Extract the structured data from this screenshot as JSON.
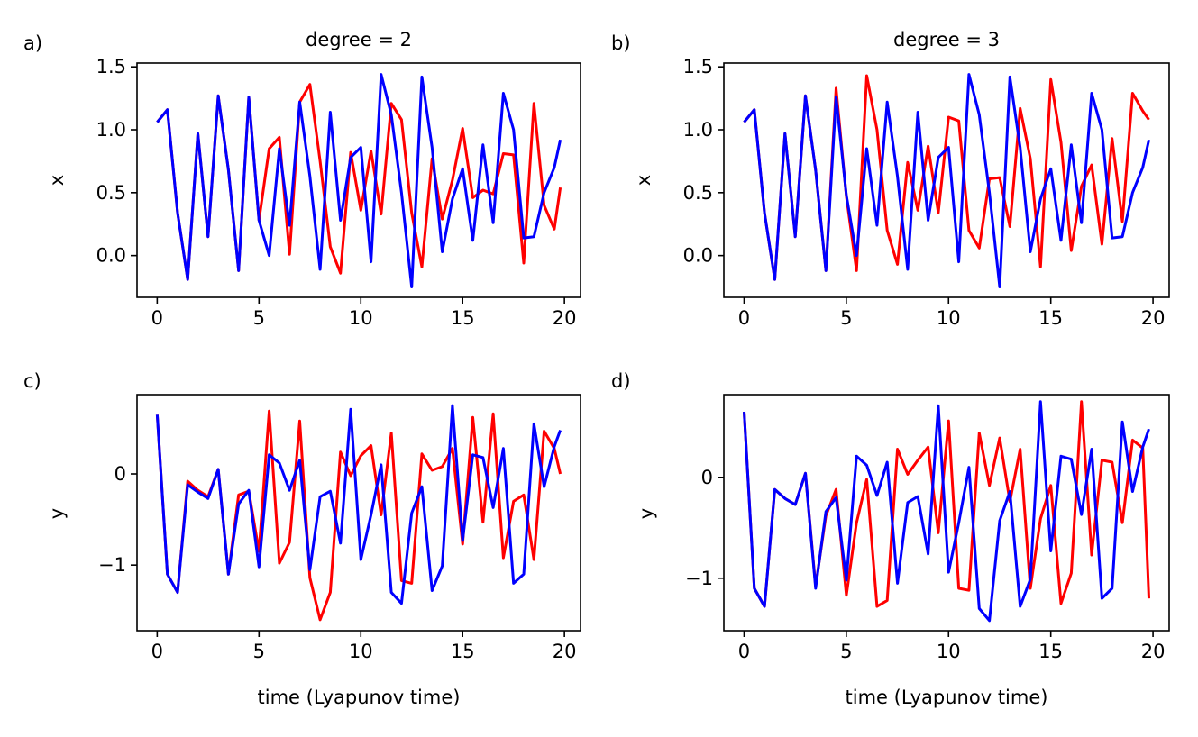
{
  "figure": {
    "background": "#ffffff"
  },
  "colors": {
    "series_red": "#ff0000",
    "series_blue": "#0000ff",
    "axis": "#000000"
  },
  "chart_data": [
    {
      "id": "a",
      "panel_label": "a)",
      "type": "line",
      "title": "degree = 2",
      "xlabel": "",
      "ylabel": "x",
      "xlim": [
        -0.99,
        20.79
      ],
      "ylim": [
        -0.332,
        1.53
      ],
      "xticks": [
        0,
        5,
        10,
        15,
        20
      ],
      "yticks": [
        0.0,
        0.5,
        1.0,
        1.5
      ],
      "ytick_labels": [
        "0.0",
        "0.5",
        "1.0",
        "1.5"
      ],
      "x": [
        0.0,
        0.5,
        1.0,
        1.5,
        2.0,
        2.5,
        3.0,
        3.5,
        4.0,
        4.5,
        5.0,
        5.5,
        6.0,
        6.5,
        7.0,
        7.5,
        8.0,
        8.5,
        9.0,
        9.5,
        10.0,
        10.5,
        11.0,
        11.5,
        12.0,
        12.5,
        13.0,
        13.5,
        14.0,
        14.5,
        15.0,
        15.5,
        16.0,
        16.5,
        17.0,
        17.5,
        18.0,
        18.5,
        19.0,
        19.5,
        19.8
      ],
      "series": [
        {
          "name": "red",
          "color": "#ff0000",
          "values": [
            1.06,
            1.16,
            0.34,
            -0.19,
            0.97,
            0.15,
            1.27,
            0.68,
            -0.12,
            1.26,
            0.28,
            0.85,
            0.94,
            0.01,
            1.22,
            1.36,
            0.75,
            0.07,
            -0.14,
            0.82,
            0.36,
            0.83,
            0.33,
            1.21,
            1.08,
            0.34,
            -0.09,
            0.77,
            0.29,
            0.6,
            1.01,
            0.46,
            0.52,
            0.49,
            0.81,
            0.8,
            -0.06,
            1.21,
            0.4,
            0.21,
            0.54
          ]
        },
        {
          "name": "blue",
          "color": "#0000ff",
          "values": [
            1.06,
            1.16,
            0.34,
            -0.19,
            0.97,
            0.15,
            1.27,
            0.68,
            -0.12,
            1.26,
            0.28,
            0.0,
            0.85,
            0.24,
            1.22,
            0.63,
            -0.11,
            1.14,
            0.28,
            0.78,
            0.86,
            -0.05,
            1.44,
            1.12,
            0.5,
            -0.25,
            1.42,
            0.86,
            0.03,
            0.45,
            0.69,
            0.12,
            0.88,
            0.26,
            1.29,
            1.0,
            0.14,
            0.15,
            0.5,
            0.7,
            0.92
          ]
        }
      ]
    },
    {
      "id": "b",
      "panel_label": "b)",
      "type": "line",
      "title": "degree = 3",
      "xlabel": "",
      "ylabel": "x",
      "xlim": [
        -0.99,
        20.79
      ],
      "ylim": [
        -0.332,
        1.53
      ],
      "xticks": [
        0,
        5,
        10,
        15,
        20
      ],
      "yticks": [
        0.0,
        0.5,
        1.0,
        1.5
      ],
      "ytick_labels": [
        "0.0",
        "0.5",
        "1.0",
        "1.5"
      ],
      "x": [
        0.0,
        0.5,
        1.0,
        1.5,
        2.0,
        2.5,
        3.0,
        3.5,
        4.0,
        4.5,
        5.0,
        5.5,
        6.0,
        6.5,
        7.0,
        7.5,
        8.0,
        8.5,
        9.0,
        9.5,
        10.0,
        10.5,
        11.0,
        11.5,
        12.0,
        12.5,
        13.0,
        13.5,
        14.0,
        14.5,
        15.0,
        15.5,
        16.0,
        16.5,
        17.0,
        17.5,
        18.0,
        18.5,
        19.0,
        19.5,
        19.8
      ],
      "series": [
        {
          "name": "red",
          "color": "#ff0000",
          "values": [
            1.06,
            1.16,
            0.34,
            -0.19,
            0.97,
            0.15,
            1.27,
            0.68,
            -0.12,
            1.33,
            0.47,
            -0.12,
            1.43,
            1.0,
            0.2,
            -0.07,
            0.74,
            0.36,
            0.87,
            0.34,
            1.1,
            1.07,
            0.2,
            0.06,
            0.61,
            0.62,
            0.23,
            1.17,
            0.77,
            -0.09,
            1.4,
            0.9,
            0.04,
            0.55,
            0.72,
            0.09,
            0.93,
            0.27,
            1.29,
            1.15,
            1.08
          ]
        },
        {
          "name": "blue",
          "color": "#0000ff",
          "values": [
            1.06,
            1.16,
            0.34,
            -0.19,
            0.97,
            0.15,
            1.27,
            0.68,
            -0.12,
            1.26,
            0.48,
            0.0,
            0.85,
            0.24,
            1.22,
            0.63,
            -0.11,
            1.14,
            0.28,
            0.78,
            0.86,
            -0.05,
            1.44,
            1.12,
            0.5,
            -0.25,
            1.42,
            0.86,
            0.03,
            0.45,
            0.69,
            0.12,
            0.88,
            0.26,
            1.29,
            1.0,
            0.14,
            0.15,
            0.5,
            0.7,
            0.92
          ]
        }
      ]
    },
    {
      "id": "c",
      "panel_label": "c)",
      "type": "line",
      "title": "",
      "xlabel": "time (Lyapunov time)",
      "ylabel": "y",
      "xlim": [
        -0.99,
        20.79
      ],
      "ylim": [
        -1.72,
        0.87
      ],
      "xticks": [
        0,
        5,
        10,
        15,
        20
      ],
      "yticks": [
        -1,
        0
      ],
      "ytick_labels": [
        "−1",
        "0"
      ],
      "x": [
        0.0,
        0.5,
        1.0,
        1.5,
        2.0,
        2.5,
        3.0,
        3.5,
        4.0,
        4.5,
        5.0,
        5.5,
        6.0,
        6.5,
        7.0,
        7.5,
        8.0,
        8.5,
        9.0,
        9.5,
        10.0,
        10.5,
        11.0,
        11.5,
        12.0,
        12.5,
        13.0,
        13.5,
        14.0,
        14.5,
        15.0,
        15.5,
        16.0,
        16.5,
        17.0,
        17.5,
        18.0,
        18.5,
        19.0,
        19.5,
        19.8
      ],
      "series": [
        {
          "name": "red",
          "color": "#ff0000",
          "values": [
            0.65,
            -1.1,
            -1.3,
            -0.08,
            -0.18,
            -0.25,
            0.05,
            -1.1,
            -0.23,
            -0.19,
            -0.85,
            0.69,
            -0.98,
            -0.75,
            0.58,
            -1.14,
            -1.6,
            -1.3,
            0.24,
            -0.02,
            0.2,
            0.31,
            -0.45,
            0.45,
            -1.17,
            -1.2,
            0.22,
            0.04,
            0.08,
            0.28,
            -0.77,
            0.62,
            -0.53,
            0.66,
            -0.92,
            -0.3,
            -0.23,
            -0.94,
            0.47,
            0.28,
            0.0
          ]
        },
        {
          "name": "blue",
          "color": "#0000ff",
          "values": [
            0.65,
            -1.1,
            -1.3,
            -0.12,
            -0.2,
            -0.27,
            0.05,
            -1.1,
            -0.33,
            -0.18,
            -1.02,
            0.21,
            0.12,
            -0.18,
            0.15,
            -1.05,
            -0.25,
            -0.19,
            -0.76,
            0.71,
            -0.94,
            -0.45,
            0.1,
            -1.3,
            -1.42,
            -0.43,
            -0.14,
            -1.28,
            -1.01,
            0.75,
            -0.73,
            0.21,
            0.18,
            -0.37,
            0.28,
            -1.2,
            -1.1,
            0.55,
            -0.14,
            0.3,
            0.48
          ]
        }
      ]
    },
    {
      "id": "d",
      "panel_label": "d)",
      "type": "line",
      "title": "",
      "xlabel": "time (Lyapunov time)",
      "ylabel": "y",
      "xlim": [
        -0.99,
        20.79
      ],
      "ylim": [
        -1.52,
        0.82
      ],
      "xticks": [
        0,
        5,
        10,
        15,
        20
      ],
      "yticks": [
        -1,
        0
      ],
      "ytick_labels": [
        "−1",
        "0"
      ],
      "x": [
        0.0,
        0.5,
        1.0,
        1.5,
        2.0,
        2.5,
        3.0,
        3.5,
        4.0,
        4.5,
        5.0,
        5.5,
        6.0,
        6.5,
        7.0,
        7.5,
        8.0,
        8.5,
        9.0,
        9.5,
        10.0,
        10.5,
        11.0,
        11.5,
        12.0,
        12.5,
        13.0,
        13.5,
        14.0,
        14.5,
        15.0,
        15.5,
        16.0,
        16.5,
        17.0,
        17.5,
        18.0,
        18.5,
        19.0,
        19.5,
        19.8
      ],
      "series": [
        {
          "name": "red",
          "color": "#ff0000",
          "values": [
            0.65,
            -1.1,
            -1.28,
            -0.12,
            -0.21,
            -0.27,
            0.04,
            -1.08,
            -0.38,
            -0.12,
            -1.17,
            -0.45,
            -0.02,
            -1.28,
            -1.22,
            0.28,
            0.03,
            0.17,
            0.3,
            -0.55,
            0.56,
            -1.1,
            -1.12,
            0.44,
            -0.08,
            0.39,
            -0.24,
            0.28,
            -1.1,
            -0.41,
            -0.08,
            -1.25,
            -0.95,
            0.75,
            -0.77,
            0.17,
            0.15,
            -0.45,
            0.37,
            0.29,
            -1.2
          ]
        },
        {
          "name": "blue",
          "color": "#0000ff",
          "values": [
            0.65,
            -1.1,
            -1.28,
            -0.12,
            -0.21,
            -0.27,
            0.04,
            -1.1,
            -0.34,
            -0.2,
            -1.02,
            0.21,
            0.12,
            -0.18,
            0.15,
            -1.05,
            -0.25,
            -0.19,
            -0.76,
            0.71,
            -0.94,
            -0.45,
            0.1,
            -1.3,
            -1.42,
            -0.43,
            -0.14,
            -1.28,
            -1.01,
            0.75,
            -0.73,
            0.21,
            0.18,
            -0.37,
            0.28,
            -1.2,
            -1.1,
            0.55,
            -0.14,
            0.3,
            0.48
          ]
        }
      ]
    }
  ]
}
